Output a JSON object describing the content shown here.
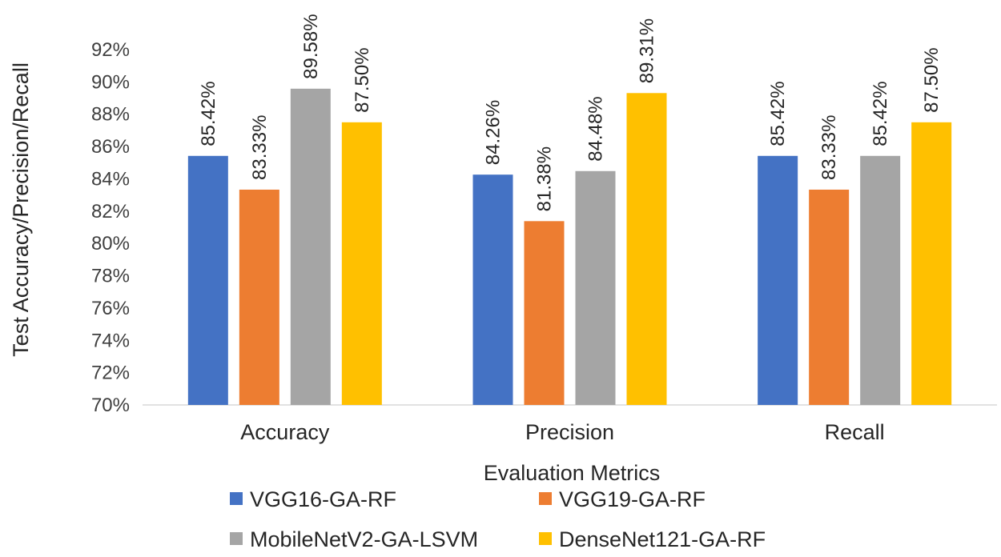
{
  "chart_data": {
    "type": "bar",
    "title": "",
    "xlabel": "Evaluation Metrics",
    "ylabel": "Test Accuracy/Precision/Recall",
    "categories": [
      "Accuracy",
      "Precision",
      "Recall"
    ],
    "ylim": [
      70,
      92
    ],
    "yticks": [
      70,
      72,
      74,
      76,
      78,
      80,
      82,
      84,
      86,
      88,
      90,
      92
    ],
    "ytick_suffix": "%",
    "grid": false,
    "legend_position": "bottom",
    "series": [
      {
        "name": "VGG16-GA-RF",
        "color": "#4472C4",
        "values": [
          85.42,
          84.26,
          85.42
        ],
        "labels": [
          "85.42%",
          "84.26%",
          "85.42%"
        ]
      },
      {
        "name": "VGG19-GA-RF",
        "color": "#ED7D31",
        "values": [
          83.33,
          81.38,
          83.33
        ],
        "labels": [
          "83.33%",
          "81.38%",
          "83.33%"
        ]
      },
      {
        "name": "MobileNetV2-GA-LSVM",
        "color": "#A5A5A5",
        "values": [
          89.58,
          84.48,
          85.42
        ],
        "labels": [
          "89.58%",
          "84.48%",
          "85.42%"
        ]
      },
      {
        "name": "DenseNet121-GA-RF",
        "color": "#FFC000",
        "values": [
          87.5,
          89.31,
          87.5
        ],
        "labels": [
          "87.50%",
          "89.31%",
          "87.50%"
        ]
      }
    ]
  }
}
